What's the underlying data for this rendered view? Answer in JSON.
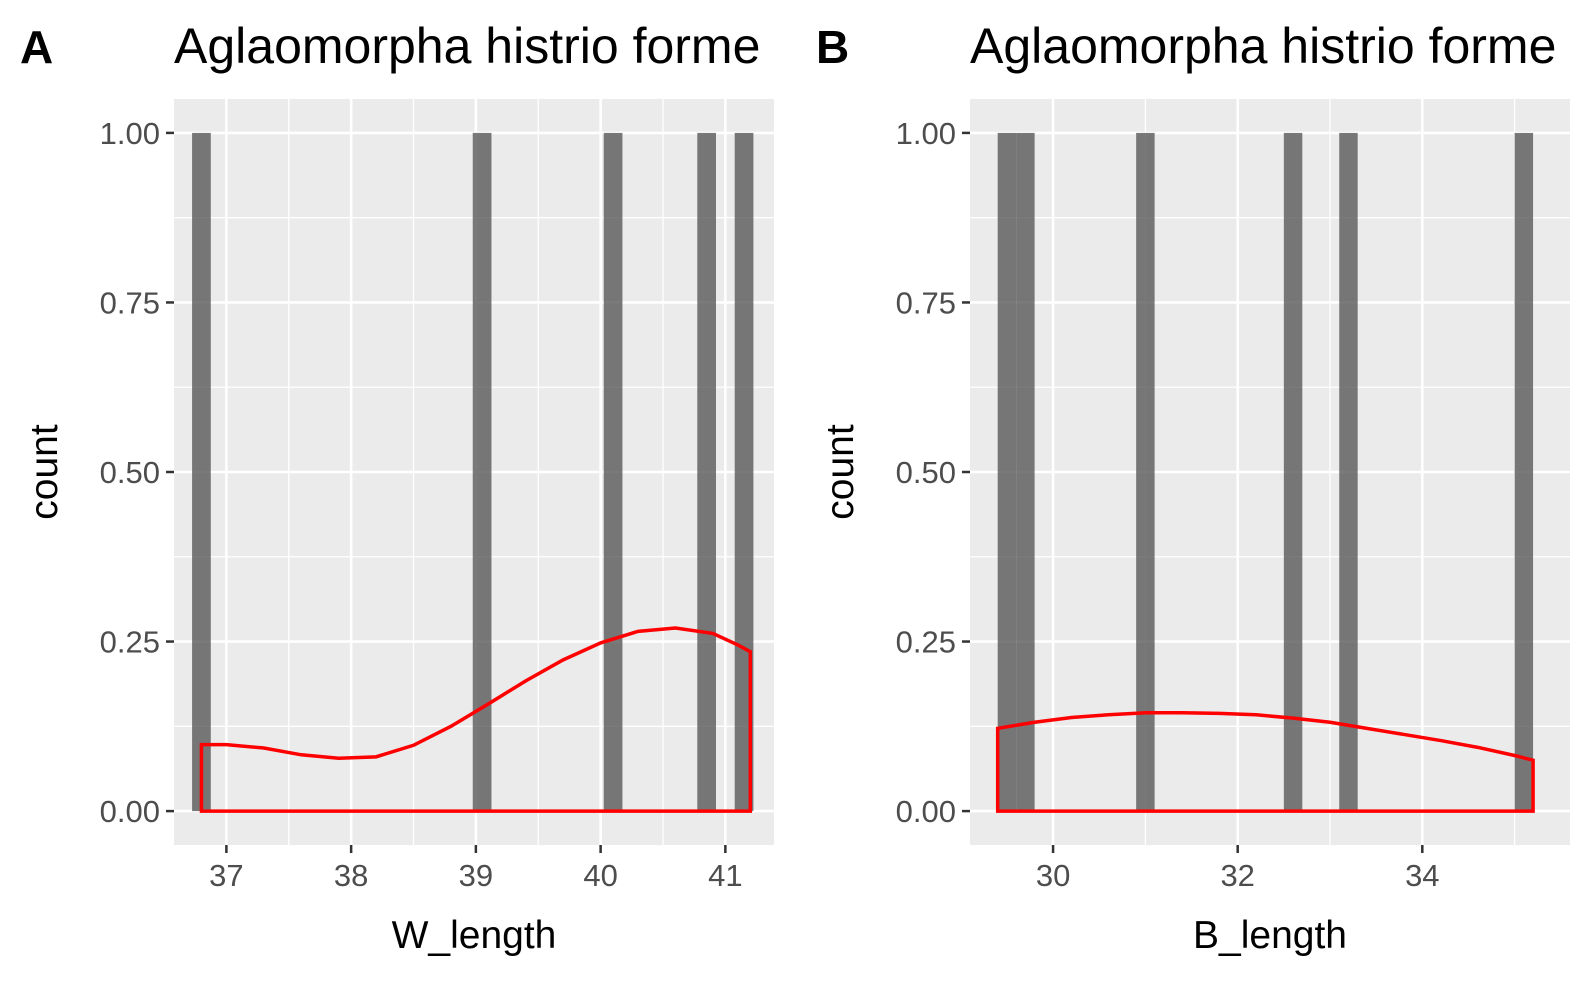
{
  "colors": {
    "panel_background": "#ebebeb",
    "grid_line": "#ffffff",
    "bar_fill": "#595959",
    "density_line": "#ff0000",
    "tick_mark": "#333333"
  },
  "chart_data": [
    {
      "type": "bar",
      "subtype": "histogram with density overlay",
      "tag": "A",
      "title": "Aglaomorpha histrio forme",
      "xlabel": "W_length",
      "ylabel": "count",
      "xlim": [
        36.58,
        41.39
      ],
      "ylim": [
        -0.05,
        1.05
      ],
      "x_ticks": [
        37,
        38,
        39,
        40,
        41
      ],
      "x_tick_labels": [
        "37",
        "38",
        "39",
        "40",
        "41"
      ],
      "y_ticks": [
        0,
        0.25,
        0.5,
        0.75,
        1.0
      ],
      "y_tick_labels": [
        "0.00",
        "0.25",
        "0.50",
        "0.75",
        "1.00"
      ],
      "grid": true,
      "bar_width": 0.15,
      "bars": [
        {
          "x": 36.8,
          "count": 1
        },
        {
          "x": 39.05,
          "count": 1
        },
        {
          "x": 40.1,
          "count": 1
        },
        {
          "x": 40.85,
          "count": 1
        },
        {
          "x": 41.15,
          "count": 1
        }
      ],
      "density": {
        "x": [
          36.8,
          37.0,
          37.3,
          37.6,
          37.9,
          38.2,
          38.5,
          38.8,
          39.1,
          39.4,
          39.7,
          40.0,
          40.3,
          40.6,
          40.9,
          41.1,
          41.2
        ],
        "y": [
          0.098,
          0.098,
          0.093,
          0.083,
          0.078,
          0.08,
          0.097,
          0.125,
          0.158,
          0.192,
          0.223,
          0.248,
          0.265,
          0.27,
          0.262,
          0.245,
          0.235
        ]
      }
    },
    {
      "type": "bar",
      "subtype": "histogram with density overlay",
      "tag": "B",
      "title": "Aglaomorpha histrio forme",
      "xlabel": "B_length",
      "ylabel": "count",
      "xlim": [
        29.1,
        35.6
      ],
      "ylim": [
        -0.05,
        1.05
      ],
      "x_ticks": [
        30,
        32,
        34
      ],
      "x_tick_labels": [
        "30",
        "32",
        "34"
      ],
      "y_ticks": [
        0,
        0.25,
        0.5,
        0.75,
        1.0
      ],
      "y_tick_labels": [
        "0.00",
        "0.25",
        "0.50",
        "0.75",
        "1.00"
      ],
      "grid": true,
      "bar_width": 0.2,
      "bars": [
        {
          "x": 29.5,
          "count": 1
        },
        {
          "x": 29.7,
          "count": 1
        },
        {
          "x": 31.0,
          "count": 1
        },
        {
          "x": 32.6,
          "count": 1
        },
        {
          "x": 33.2,
          "count": 1
        },
        {
          "x": 35.1,
          "count": 1
        }
      ],
      "density": {
        "x": [
          29.4,
          29.8,
          30.2,
          30.6,
          31.0,
          31.4,
          31.8,
          32.2,
          32.6,
          33.0,
          33.4,
          33.8,
          34.2,
          34.6,
          35.0,
          35.2
        ],
        "y": [
          0.122,
          0.131,
          0.138,
          0.142,
          0.145,
          0.145,
          0.144,
          0.142,
          0.137,
          0.131,
          0.122,
          0.113,
          0.104,
          0.094,
          0.082,
          0.075
        ]
      }
    }
  ]
}
